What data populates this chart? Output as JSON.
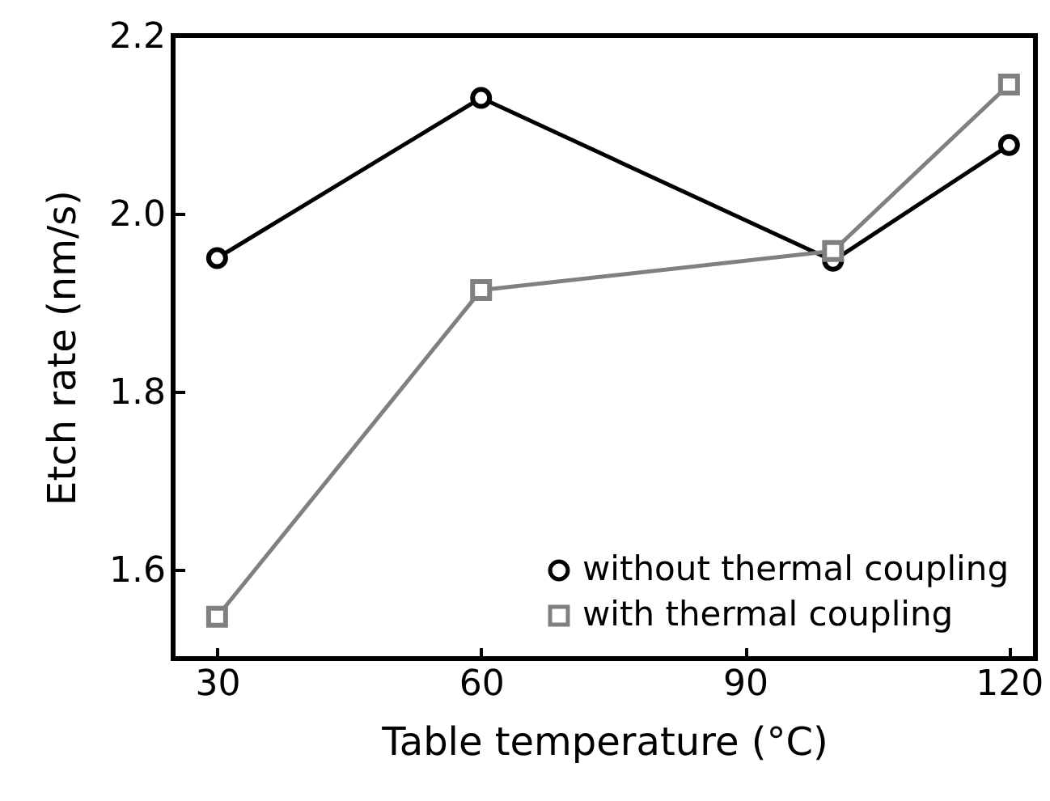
{
  "chart_data": {
    "type": "line",
    "xlabel": "Table temperature (°C)",
    "ylabel": "Etch rate (nm/s)",
    "x": [
      30,
      60,
      100,
      120
    ],
    "xlim": [
      25,
      123
    ],
    "xticks": [
      30,
      60,
      90,
      120
    ],
    "ylim": [
      1.5,
      2.2
    ],
    "yticks": [
      1.6,
      1.8,
      {
        "value": 2,
        "label": "2.0"
      },
      2.2
    ],
    "grid": false,
    "legend": "bottom right",
    "series": [
      {
        "name": "without thermal coupling",
        "color": "#000000",
        "marker": "circle",
        "values": [
          1.95,
          2.13,
          1.947,
          2.077
        ]
      },
      {
        "name": "with thermal coupling",
        "color": "#808080",
        "marker": "square",
        "values": [
          1.547,
          1.914,
          1.958,
          2.145
        ]
      }
    ]
  }
}
